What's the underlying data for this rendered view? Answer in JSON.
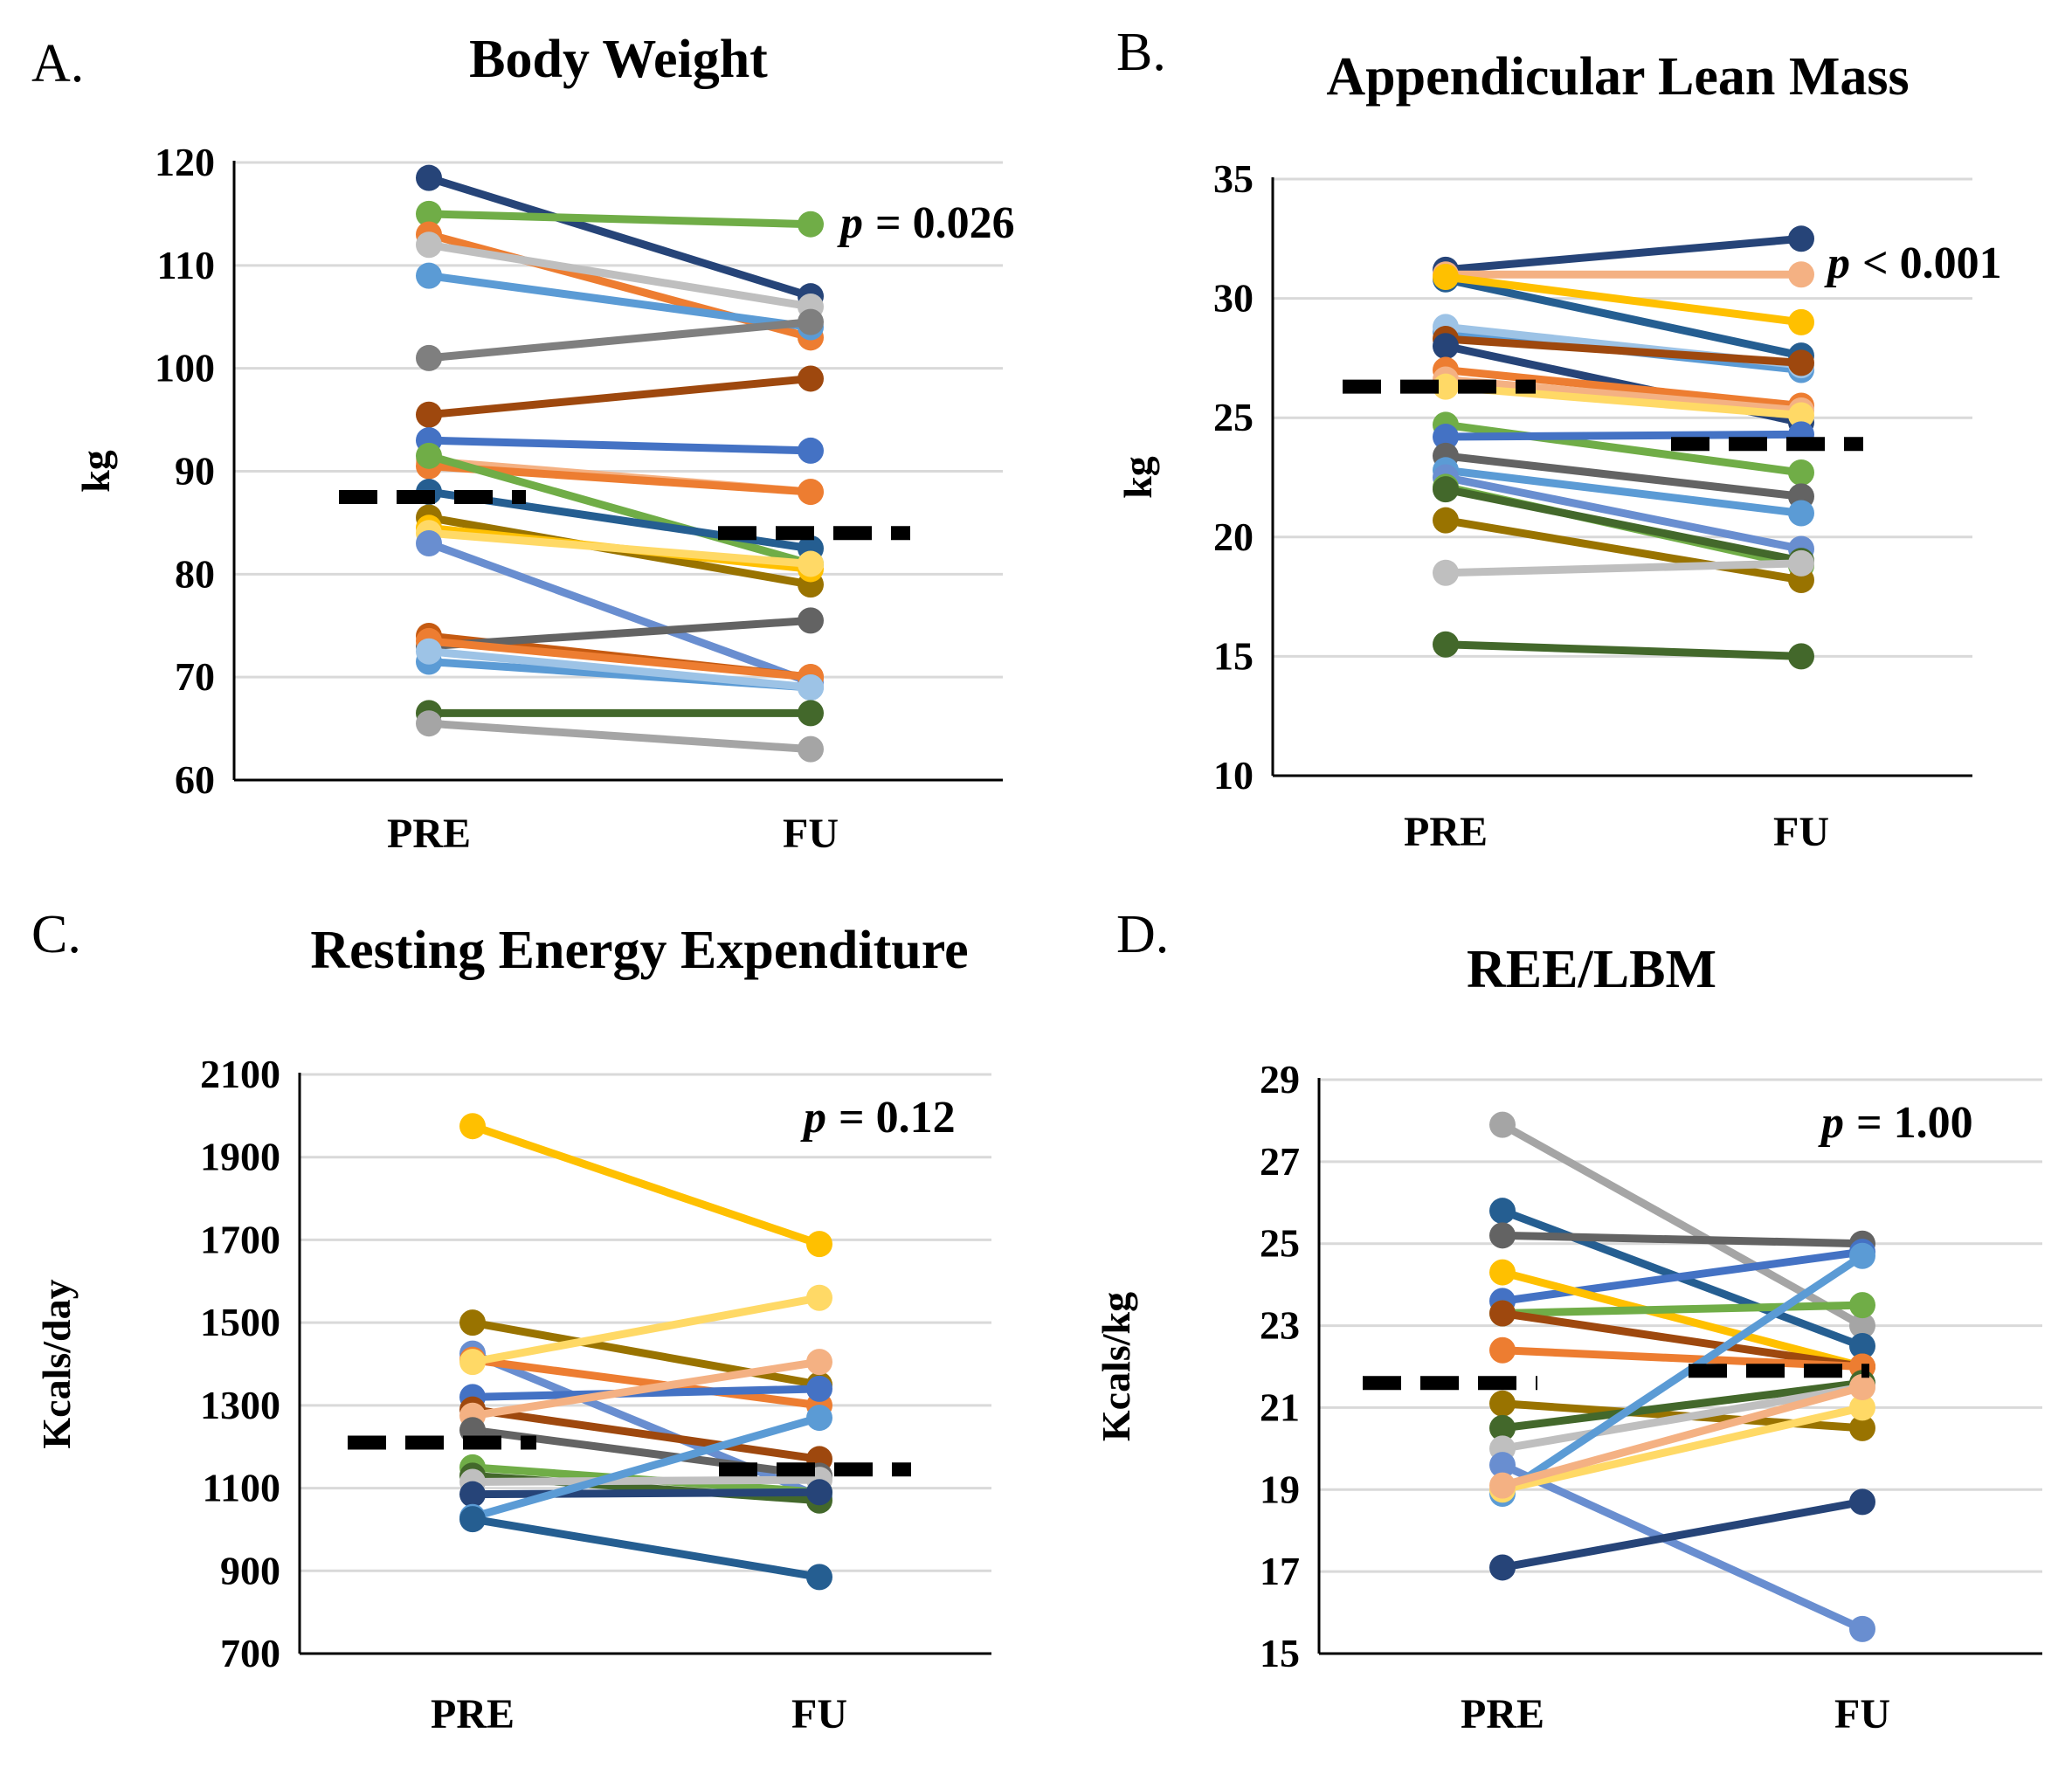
{
  "chart_data": [
    {
      "type": "line",
      "panel_label": "A.",
      "title": "Body Weight",
      "xlabel": "",
      "ylabel": "kg",
      "categories": [
        "PRE",
        "FU"
      ],
      "ylim": [
        60,
        120
      ],
      "yticks": [
        60,
        70,
        80,
        90,
        100,
        110,
        120
      ],
      "grid": true,
      "p_symbol": "p",
      "p_text": "= 0.026",
      "mean": [
        87.5,
        84
      ],
      "series": [
        {
          "color": "#264478",
          "values": [
            118.5,
            107
          ]
        },
        {
          "color": "#70AD47",
          "values": [
            115,
            114
          ]
        },
        {
          "color": "#ED7D31",
          "values": [
            113,
            103
          ]
        },
        {
          "color": "#BFBFBF",
          "values": [
            112,
            106
          ]
        },
        {
          "color": "#5B9BD5",
          "values": [
            109,
            104
          ]
        },
        {
          "color": "#7F7F7F",
          "values": [
            101,
            104.5
          ]
        },
        {
          "color": "#9E480E",
          "values": [
            95.5,
            99
          ]
        },
        {
          "color": "#4472C4",
          "values": [
            93,
            92
          ]
        },
        {
          "color": "#F4B183",
          "values": [
            91,
            88
          ]
        },
        {
          "color": "#ED7D31",
          "values": [
            90.5,
            88
          ]
        },
        {
          "color": "#70AD47",
          "values": [
            91.5,
            81
          ]
        },
        {
          "color": "#255E91",
          "values": [
            88,
            82.5
          ]
        },
        {
          "color": "#997300",
          "values": [
            85.5,
            79
          ]
        },
        {
          "color": "#FFC000",
          "values": [
            84.5,
            80.5
          ]
        },
        {
          "color": "#FFD966",
          "values": [
            84,
            81
          ]
        },
        {
          "color": "#698ED0",
          "values": [
            83,
            69.5
          ]
        },
        {
          "color": "#C55A11",
          "values": [
            74,
            70
          ]
        },
        {
          "color": "#636363",
          "values": [
            73,
            75.5
          ]
        },
        {
          "color": "#ED7D31",
          "values": [
            73.5,
            70
          ]
        },
        {
          "color": "#5B9BD5",
          "values": [
            71.5,
            69
          ]
        },
        {
          "color": "#9DC3E6",
          "values": [
            72.5,
            69
          ]
        },
        {
          "color": "#43682B",
          "values": [
            66.5,
            66.5
          ]
        },
        {
          "color": "#A5A5A5",
          "values": [
            65.5,
            63
          ]
        }
      ]
    },
    {
      "type": "line",
      "panel_label": "B.",
      "title": "Appendicular Lean Mass",
      "xlabel": "",
      "ylabel": "kg",
      "categories": [
        "PRE",
        "FU"
      ],
      "ylim": [
        10,
        35
      ],
      "yticks": [
        10,
        15,
        20,
        25,
        30,
        35
      ],
      "grid": true,
      "p_symbol": "p",
      "p_text": "< 0.001",
      "mean": [
        26.3,
        23.9
      ],
      "series": [
        {
          "color": "#264478",
          "values": [
            31.2,
            32.5
          ]
        },
        {
          "color": "#F4B183",
          "values": [
            31,
            31
          ]
        },
        {
          "color": "#255E91",
          "values": [
            30.8,
            27.6
          ]
        },
        {
          "color": "#FFC000",
          "values": [
            30.9,
            29
          ]
        },
        {
          "color": "#5B9BD5",
          "values": [
            28.6,
            27
          ]
        },
        {
          "color": "#9DC3E6",
          "values": [
            28.8,
            27.2
          ]
        },
        {
          "color": "#9E480E",
          "values": [
            28.3,
            27.3
          ]
        },
        {
          "color": "#264478",
          "values": [
            28,
            24.8
          ]
        },
        {
          "color": "#ED7D31",
          "values": [
            27,
            25.5
          ]
        },
        {
          "color": "#F4B183",
          "values": [
            26.6,
            25.3
          ]
        },
        {
          "color": "#FFD966",
          "values": [
            26.3,
            25.1
          ]
        },
        {
          "color": "#70AD47",
          "values": [
            24.7,
            22.7
          ]
        },
        {
          "color": "#4472C4",
          "values": [
            24.2,
            24.3
          ]
        },
        {
          "color": "#636363",
          "values": [
            23.4,
            21.7
          ]
        },
        {
          "color": "#5B9BD5",
          "values": [
            22.8,
            21
          ]
        },
        {
          "color": "#698ED0",
          "values": [
            22.5,
            19.5
          ]
        },
        {
          "color": "#70AD47",
          "values": [
            22.1,
            18.8
          ]
        },
        {
          "color": "#43682B",
          "values": [
            22,
            19
          ]
        },
        {
          "color": "#997300",
          "values": [
            20.7,
            18.2
          ]
        },
        {
          "color": "#BFBFBF",
          "values": [
            18.5,
            18.9
          ]
        },
        {
          "color": "#43682B",
          "values": [
            15.5,
            15
          ]
        }
      ]
    },
    {
      "type": "line",
      "panel_label": "C.",
      "title": "Resting Energy Expenditure",
      "xlabel": "",
      "ylabel": "Kcals/day",
      "categories": [
        "PRE",
        "FU"
      ],
      "ylim": [
        700,
        2100
      ],
      "yticks": [
        700,
        900,
        1100,
        1300,
        1500,
        1700,
        1900,
        2100
      ],
      "grid": true,
      "p_symbol": "p",
      "p_text": "= 0.12",
      "mean": [
        1210,
        1145
      ],
      "series": [
        {
          "color": "#FFC000",
          "values": [
            1975,
            1690
          ]
        },
        {
          "color": "#997300",
          "values": [
            1500,
            1350
          ]
        },
        {
          "color": "#698ED0",
          "values": [
            1425,
            1080
          ]
        },
        {
          "color": "#ED7D31",
          "values": [
            1410,
            1300
          ]
        },
        {
          "color": "#FFD966",
          "values": [
            1405,
            1560
          ]
        },
        {
          "color": "#4472C4",
          "values": [
            1320,
            1340
          ]
        },
        {
          "color": "#9E480E",
          "values": [
            1290,
            1170
          ]
        },
        {
          "color": "#F4B183",
          "values": [
            1275,
            1405
          ]
        },
        {
          "color": "#636363",
          "values": [
            1240,
            1130
          ]
        },
        {
          "color": "#70AD47",
          "values": [
            1150,
            1090
          ]
        },
        {
          "color": "#43682B",
          "values": [
            1130,
            1070
          ]
        },
        {
          "color": "#BFBFBF",
          "values": [
            1115,
            1120
          ]
        },
        {
          "color": "#264478",
          "values": [
            1085,
            1090
          ]
        },
        {
          "color": "#5B9BD5",
          "values": [
            1030,
            1270
          ]
        },
        {
          "color": "#255E91",
          "values": [
            1025,
            885
          ]
        }
      ]
    },
    {
      "type": "line",
      "panel_label": "D.",
      "title": "REE/LBM",
      "xlabel": "",
      "ylabel": "Kcals/kg",
      "categories": [
        "PRE",
        "FU"
      ],
      "ylim": [
        15,
        29
      ],
      "yticks": [
        15,
        17,
        19,
        21,
        23,
        25,
        27,
        29
      ],
      "grid": true,
      "p_symbol": "p",
      "p_text": "= 1.00",
      "mean": [
        21.6,
        21.9
      ],
      "series": [
        {
          "color": "#A5A5A5",
          "values": [
            27.9,
            23
          ]
        },
        {
          "color": "#255E91",
          "values": [
            25.8,
            22.5
          ]
        },
        {
          "color": "#636363",
          "values": [
            25.2,
            25
          ]
        },
        {
          "color": "#4472C4",
          "values": [
            23.6,
            24.8
          ]
        },
        {
          "color": "#FFC000",
          "values": [
            24.3,
            22
          ]
        },
        {
          "color": "#70AD47",
          "values": [
            23.3,
            23.5
          ]
        },
        {
          "color": "#9E480E",
          "values": [
            23.3,
            22
          ]
        },
        {
          "color": "#ED7D31",
          "values": [
            22.4,
            22
          ]
        },
        {
          "color": "#997300",
          "values": [
            21.1,
            20.5
          ]
        },
        {
          "color": "#43682B",
          "values": [
            20.5,
            21.6
          ]
        },
        {
          "color": "#BFBFBF",
          "values": [
            20,
            21.5
          ]
        },
        {
          "color": "#698ED0",
          "values": [
            19.6,
            15.6
          ]
        },
        {
          "color": "#5B9BD5",
          "values": [
            18.9,
            24.7
          ]
        },
        {
          "color": "#FFD966",
          "values": [
            19,
            21
          ]
        },
        {
          "color": "#F4B183",
          "values": [
            19.1,
            21.5
          ]
        },
        {
          "color": "#264478",
          "values": [
            17.1,
            18.7
          ]
        }
      ]
    }
  ]
}
